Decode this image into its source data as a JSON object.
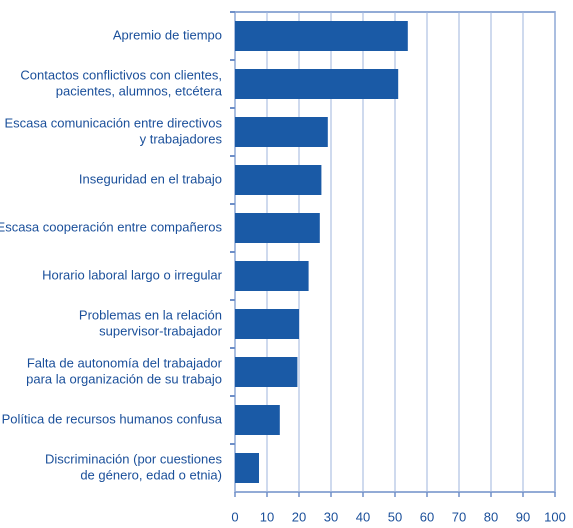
{
  "chart_data": {
    "type": "bar",
    "orientation": "horizontal",
    "categories": [
      [
        "Apremio de tiempo"
      ],
      [
        "Contactos conflictivos con clientes,",
        "pacientes, alumnos, etcétera"
      ],
      [
        "Escasa comunicación entre directivos",
        "y trabajadores"
      ],
      [
        "Inseguridad en el trabajo"
      ],
      [
        "Escasa cooperación entre compañeros"
      ],
      [
        "Horario laboral largo o irregular"
      ],
      [
        "Problemas en la relación",
        "supervisor-trabajador"
      ],
      [
        "Falta de autonomía del trabajador",
        "para la organización de su trabajo"
      ],
      [
        "Política de recursos humanos confusa"
      ],
      [
        "Discriminación (por cuestiones",
        "de género, edad o etnia)"
      ]
    ],
    "values": [
      54,
      51,
      29,
      27,
      26.5,
      23,
      20,
      19.5,
      14,
      7.5
    ],
    "color": "#1a5aa6",
    "xlim": [
      0,
      100
    ],
    "xticks": [
      0,
      10,
      20,
      30,
      40,
      50,
      60,
      70,
      80,
      90,
      100
    ],
    "grid": true
  }
}
